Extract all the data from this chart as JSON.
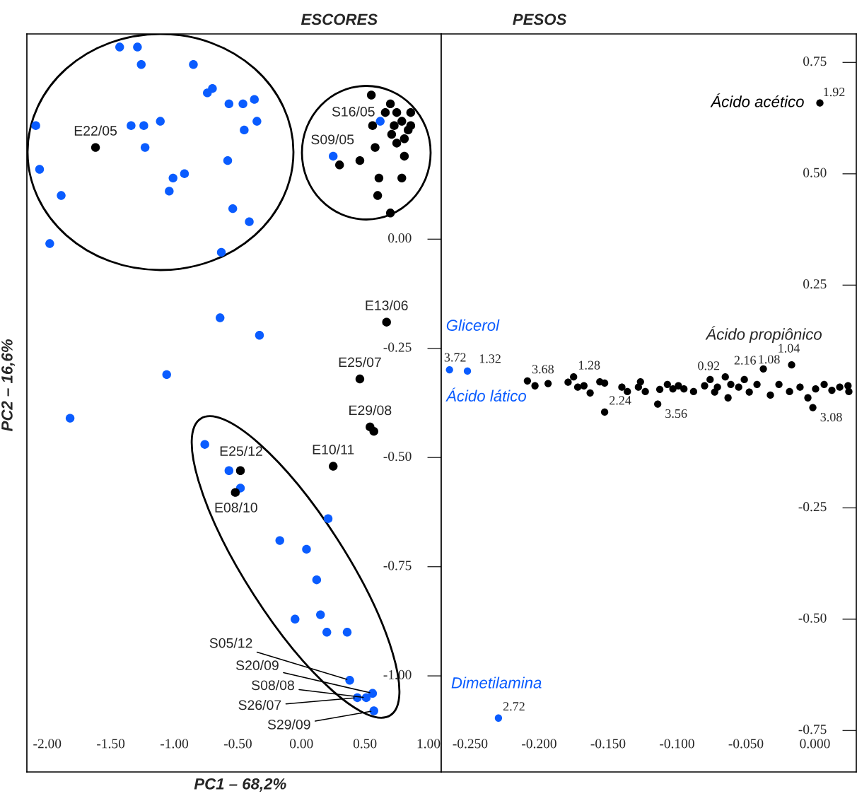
{
  "chart_data": [
    {
      "type": "scatter",
      "title": "ESCORES",
      "xlabel": "PC1 – 68,2%",
      "ylabel": "PC2 – 16,6%",
      "marker": "circle",
      "xlim": [
        -2.16,
        1.1
      ],
      "ylim": [
        -1.22,
        0.47
      ],
      "xticks": [
        {
          "value": -2,
          "label": "-2.00"
        },
        {
          "value": -1.5,
          "label": "-1.50"
        },
        {
          "value": -1,
          "label": "-1.00"
        },
        {
          "value": -0.5,
          "label": "-0.50"
        },
        {
          "value": 0,
          "label": "0.00"
        },
        {
          "value": 0.5,
          "label": "0.50"
        },
        {
          "value": 1,
          "label": "1.00"
        }
      ],
      "yticks": [
        {
          "value": 0,
          "label": "0.00"
        },
        {
          "value": -0.25,
          "label": "-0.25"
        },
        {
          "value": -0.5,
          "label": "-0.50"
        },
        {
          "value": -0.75,
          "label": "-0.75"
        },
        {
          "value": -1,
          "label": "-1.00"
        }
      ],
      "annotations": [
        {
          "text": "S16/05",
          "x": 0.62,
          "y": 0.27
        },
        {
          "text": "S09/05",
          "x": 0.25,
          "y": 0.19
        },
        {
          "text": "S05/12",
          "x": 0.38,
          "y": -1.01
        },
        {
          "text": "S20/09",
          "x": 0.56,
          "y": -1.04
        },
        {
          "text": "S08/08",
          "x": 0.51,
          "y": -1.05
        },
        {
          "text": "S26/07",
          "x": 0.44,
          "y": -1.05
        },
        {
          "text": "S29/09",
          "x": 0.57,
          "y": -1.08
        },
        {
          "text": "E22/05",
          "x": -1.62,
          "y": 0.21
        },
        {
          "text": "E13/06",
          "x": 0.67,
          "y": -0.19
        },
        {
          "text": "E25/07",
          "x": 0.46,
          "y": -0.32
        },
        {
          "text": "E29/08",
          "x": 0.54,
          "y": -0.43
        },
        {
          "text": "E10/11",
          "x": 0.25,
          "y": -0.52
        },
        {
          "text": "E25/12",
          "x": -0.48,
          "y": -0.53
        },
        {
          "text": "E08/10",
          "x": -0.52,
          "y": -0.58
        }
      ],
      "series": [
        {
          "color": "#0a5cff",
          "x": [
            0.62,
            0.25,
            0.38,
            0.56,
            0.51,
            0.44,
            0.57,
            -1.43,
            -1.29,
            -1.26,
            -0.85,
            -0.7,
            -0.74,
            -0.57,
            -0.46,
            -0.37,
            -0.35,
            -0.45,
            -2.09,
            -1.34,
            -1.24,
            -1.11,
            -1.23,
            -0.58,
            -2.06,
            -1.01,
            -0.92,
            -1.89,
            -1.04,
            -0.54,
            -0.41,
            -1.98,
            -0.63,
            -0.64,
            -0.33,
            -1.06,
            -1.82,
            -0.76,
            -0.57,
            -0.48,
            0.21,
            -0.17,
            0.04,
            0.12,
            -0.05,
            0.15,
            0.2,
            0.36
          ],
          "values": [
            0.27,
            0.19,
            -1.01,
            -1.04,
            -1.05,
            -1.05,
            -1.08,
            0.44,
            0.44,
            0.4,
            0.4,
            0.345,
            0.335,
            0.31,
            0.31,
            0.32,
            0.27,
            0.25,
            0.26,
            0.26,
            0.26,
            0.27,
            0.21,
            0.18,
            0.16,
            0.14,
            0.15,
            0.1,
            0.11,
            0.07,
            0.04,
            -0.01,
            -0.03,
            -0.18,
            -0.22,
            -0.31,
            -0.41,
            -0.47,
            -0.53,
            -0.57,
            -0.64,
            -0.69,
            -0.71,
            -0.78,
            -0.87,
            -0.86,
            -0.9,
            -0.9
          ]
        },
        {
          "color": "#000000",
          "x": [
            -1.62,
            0.67,
            0.46,
            0.54,
            0.25,
            -0.48,
            -0.52,
            0.57,
            0.55,
            0.7,
            0.66,
            0.75,
            0.86,
            0.79,
            0.86,
            0.73,
            0.84,
            0.71,
            0.81,
            0.75,
            0.56,
            0.58,
            0.46,
            0.3,
            0.81,
            0.61,
            0.79,
            0.6,
            0.7
          ],
          "values": [
            0.21,
            -0.19,
            -0.32,
            -0.43,
            -0.52,
            -0.53,
            -0.58,
            -0.44,
            0.33,
            0.31,
            0.29,
            0.29,
            0.29,
            0.27,
            0.26,
            0.26,
            0.25,
            0.24,
            0.23,
            0.22,
            0.26,
            0.21,
            0.18,
            0.17,
            0.19,
            0.14,
            0.14,
            0.1,
            0.06
          ]
        }
      ]
    },
    {
      "type": "scatter",
      "title": "PESOS",
      "marker": "circle",
      "xlim": [
        -0.271,
        0.03
      ],
      "ylim": [
        -0.843,
        0.814
      ],
      "xticks": [
        {
          "value": -0.25,
          "label": "-0.250"
        },
        {
          "value": -0.2,
          "label": "-0.200"
        },
        {
          "value": -0.15,
          "label": "-0.150"
        },
        {
          "value": -0.1,
          "label": "-0.100"
        },
        {
          "value": -0.05,
          "label": "-0.050"
        },
        {
          "value": 0,
          "label": "0.000"
        }
      ],
      "yticks": [
        {
          "value": 0.75,
          "label": "0.75"
        },
        {
          "value": 0.5,
          "label": "0.50"
        },
        {
          "value": 0.25,
          "label": "0.25"
        },
        {
          "value": -0.25,
          "label": "-0.25"
        },
        {
          "value": -0.5,
          "label": "-0.50"
        },
        {
          "value": -0.75,
          "label": "-0.75"
        }
      ],
      "annotations": [
        {
          "text": "Ácido propiônico",
          "x": -0.0169,
          "y": 0.071
        },
        {
          "text": "1.92",
          "x": 0.0036,
          "y": 0.659
        },
        {
          "text": "3.72",
          "x": -0.265,
          "y": 0.06
        },
        {
          "text": "1.32",
          "x": -0.252,
          "y": 0.057
        },
        {
          "text": "2.72",
          "x": -0.2295,
          "y": -0.722
        },
        {
          "text": "3.68",
          "x": -0.2085,
          "y": 0.035
        },
        {
          "text": "1.28",
          "x": -0.175,
          "y": 0.044
        },
        {
          "text": "2.24",
          "x": -0.1525,
          "y": -0.035
        },
        {
          "text": "3.56",
          "x": -0.114,
          "y": -0.017
        },
        {
          "text": "0.92",
          "x": -0.076,
          "y": 0.038
        },
        {
          "text": "2.16",
          "x": -0.065,
          "y": 0.044
        },
        {
          "text": "1.08",
          "x": -0.0374,
          "y": 0.062
        },
        {
          "text": "1.04",
          "x": -0.0169,
          "y": 0.071
        },
        {
          "text": "3.08",
          "x": -0.0015,
          "y": -0.025
        }
      ],
      "series": [
        {
          "name": "Ácido acético",
          "color": "#000000",
          "x": [
            0.0036
          ],
          "values": [
            0.659
          ]
        },
        {
          "name": "Glicerol",
          "color": "#0a5cff",
          "x": [
            -0.265
          ],
          "values": [
            0.06
          ]
        },
        {
          "name": "Ácido lático",
          "color": "#0a5cff",
          "x": [
            -0.252
          ],
          "values": [
            0.057
          ]
        },
        {
          "name": "Dimetilamina",
          "color": "#0a5cff",
          "x": [
            -0.2295
          ],
          "values": [
            -0.722
          ]
        },
        {
          "color": "#000000",
          "x": [
            -0.2085,
            -0.203,
            -0.1935,
            -0.179,
            -0.175,
            -0.172,
            -0.1675,
            -0.163,
            -0.156,
            -0.1525,
            -0.1525,
            -0.14,
            -0.136,
            -0.128,
            -0.1265,
            -0.123,
            -0.114,
            -0.1125,
            -0.107,
            -0.103,
            -0.099,
            -0.095,
            -0.088,
            -0.08,
            -0.076,
            -0.0707,
            -0.0727,
            -0.065,
            -0.063,
            -0.061,
            -0.0553,
            -0.0512,
            -0.0476,
            -0.042,
            -0.0374,
            -0.0323,
            -0.0261,
            -0.0169,
            -0.0184,
            -0.0108,
            -0.0051,
            -0.0015,
            0.0005,
            0.0067,
            0.0123,
            0.018,
            0.024,
            0.0246
          ],
          "values": [
            0.035,
            0.024,
            0.029,
            0.032,
            0.044,
            0.021,
            0.024,
            0.008,
            0.033,
            0.03,
            -0.035,
            0.021,
            0.011,
            0.021,
            0.033,
            0.011,
            -0.017,
            0.016,
            0.027,
            0.017,
            0.024,
            0.017,
            0.011,
            0.024,
            0.038,
            0.021,
            0.01,
            0.044,
            -0.003,
            0.027,
            0.021,
            0.038,
            0.01,
            0.027,
            0.062,
            0.003,
            0.027,
            0.071,
            0.011,
            0.021,
            -0.003,
            -0.025,
            0.017,
            0.027,
            0.014,
            0.021,
            0.024,
            0.011
          ]
        }
      ]
    }
  ]
}
